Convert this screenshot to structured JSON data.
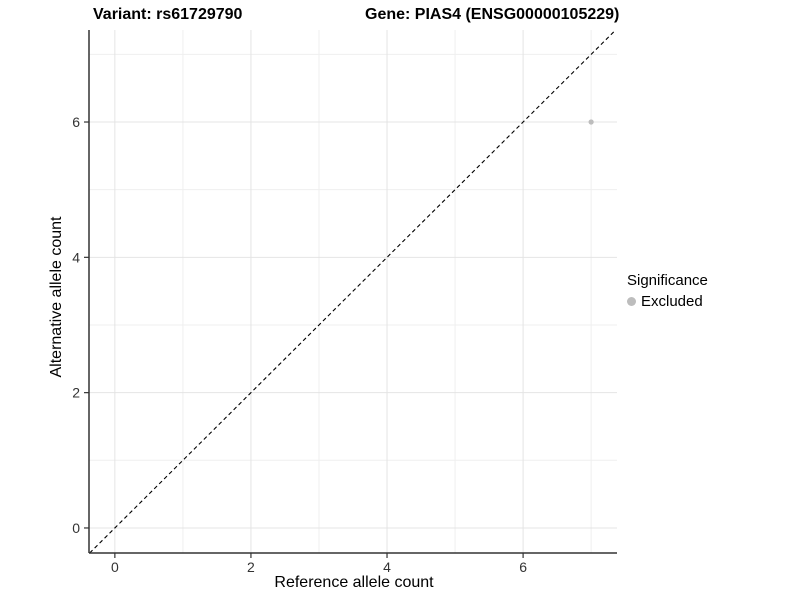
{
  "titles": {
    "variant": "Variant: rs61729790",
    "gene": "Gene: PIAS4 (ENSG00000105229)"
  },
  "legend": {
    "title": "Significance",
    "items": [
      {
        "label": "Excluded",
        "color": "#bdbdbd"
      }
    ]
  },
  "chart_data": {
    "type": "scatter",
    "xlabel": "Reference allele count",
    "ylabel": "Alternative allele count",
    "xlim": [
      -0.38,
      7.38
    ],
    "ylim": [
      -0.37,
      7.36
    ],
    "x_major_ticks": [
      0,
      2,
      4,
      6
    ],
    "y_major_ticks": [
      0,
      2,
      4,
      6
    ],
    "x_minor_ticks": [
      1,
      3,
      5,
      7
    ],
    "y_minor_ticks": [
      1,
      3,
      5,
      7
    ],
    "grid": "major+minor",
    "legend_position": "right",
    "series": [
      {
        "name": "Excluded",
        "color": "#bdbdbd",
        "points": [
          {
            "x": 7,
            "y": 6
          }
        ]
      }
    ],
    "reference_line": {
      "type": "identity",
      "style": "dashed",
      "color": "#000000"
    },
    "colors": {
      "grid_major": "#e4e4e4",
      "grid_minor": "#efefef",
      "axis_line": "#333333",
      "tick_text": "#333333"
    }
  }
}
